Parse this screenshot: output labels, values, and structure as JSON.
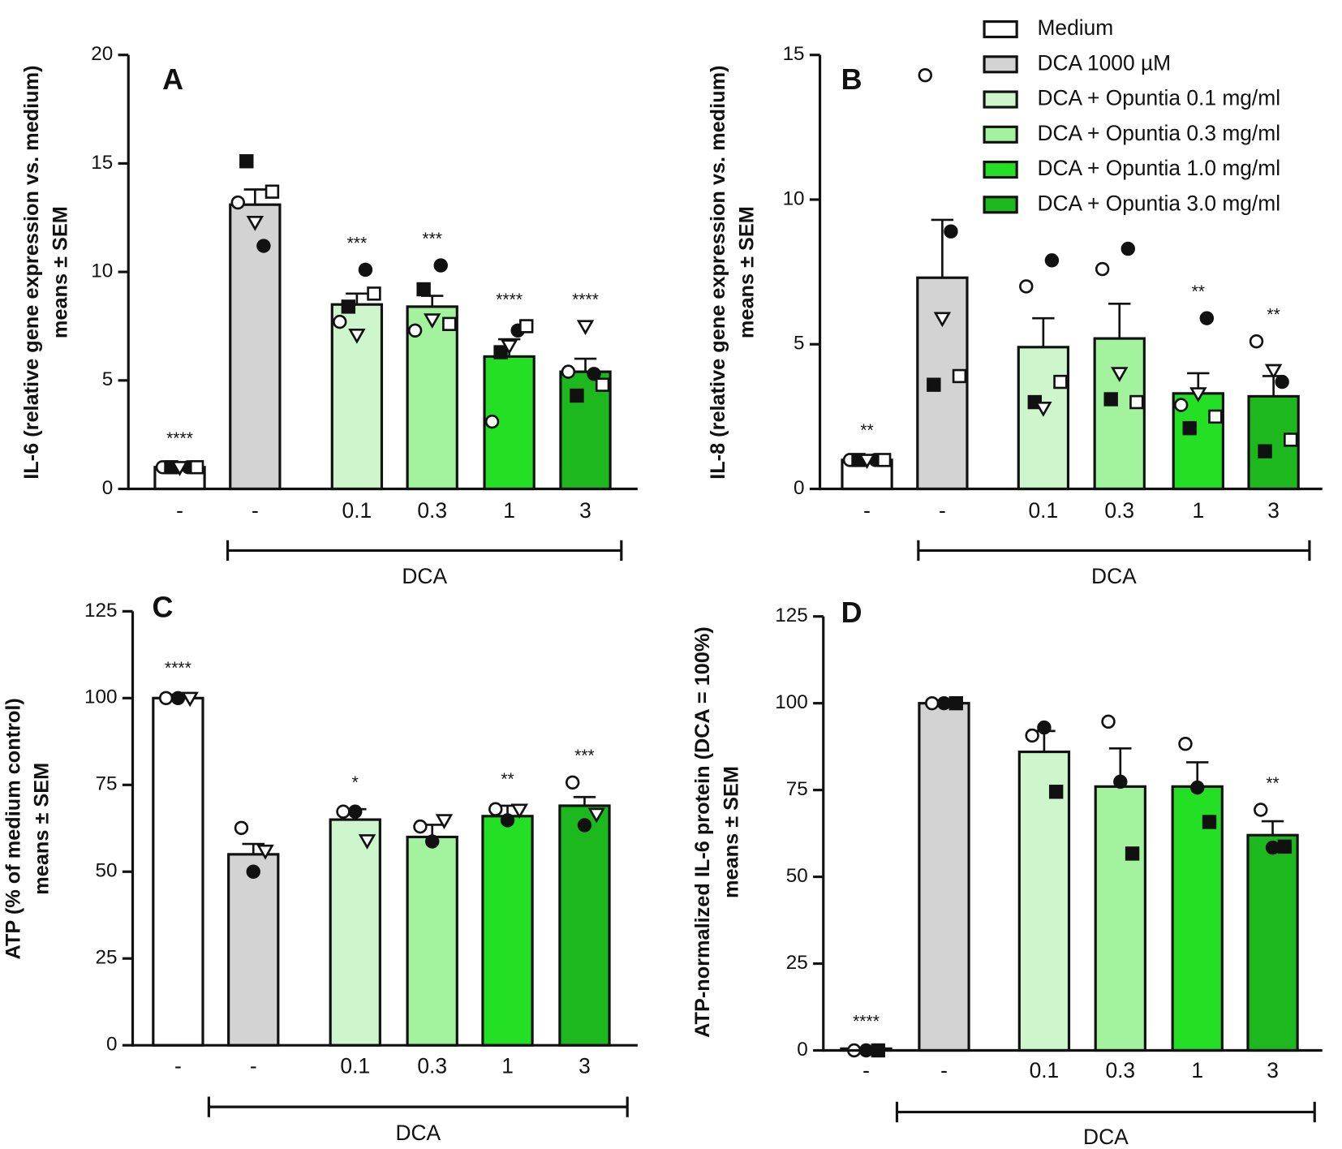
{
  "legend": [
    {
      "name": "Medium",
      "color": "#ffffff"
    },
    {
      "name": "DCA 1000 µM",
      "color": "#d3d3d3"
    },
    {
      "name": "DCA + Opuntia 0.1 mg/ml",
      "color": "#cdf6cc"
    },
    {
      "name": "DCA + Opuntia 0.3 mg/ml",
      "color": "#a2f29e"
    },
    {
      "name": "DCA + Opuntia 1.0 mg/ml",
      "color": "#24e024"
    },
    {
      "name": "DCA + Opuntia 3.0 mg/ml",
      "color": "#1db81d"
    }
  ],
  "chart_data": [
    {
      "type": "bar",
      "panel": "A",
      "ylabel": [
        "IL-6 (relative gene expression vs. medium)",
        "means ± SEM"
      ],
      "categories": [
        "-",
        "-",
        "0.1",
        "0.3",
        "1",
        "3"
      ],
      "group_label": "DCA",
      "values": [
        1.0,
        13.1,
        8.5,
        8.4,
        6.1,
        5.4
      ],
      "errors": [
        0.1,
        0.7,
        0.5,
        0.5,
        0.8,
        0.6
      ],
      "point_markers": [
        "circle-open",
        "circle-filled",
        "square-filled",
        "square-open",
        "triangle-open"
      ],
      "points": [
        [
          1.0,
          1.0,
          1.0,
          1.0,
          1.0
        ],
        [
          13.2,
          11.2,
          15.1,
          13.7,
          12.3
        ],
        [
          7.7,
          10.1,
          8.4,
          9.0,
          7.1
        ],
        [
          7.3,
          10.3,
          9.2,
          7.6,
          7.8
        ],
        [
          3.1,
          7.3,
          6.3,
          7.5,
          6.6
        ],
        [
          5.4,
          5.3,
          4.3,
          4.8,
          7.5
        ]
      ],
      "significance": [
        "****",
        null,
        "***",
        "***",
        "****",
        "****"
      ],
      "ylim": [
        0,
        20
      ],
      "yticks": [
        0,
        5,
        10,
        15,
        20
      ]
    },
    {
      "type": "bar",
      "panel": "B",
      "ylabel": [
        "IL-8 (relative gene expression vs. medium)",
        "means ± SEM"
      ],
      "categories": [
        "-",
        "-",
        "0.1",
        "0.3",
        "1",
        "3"
      ],
      "group_label": "DCA",
      "values": [
        1.0,
        7.3,
        4.9,
        5.2,
        3.3,
        3.2
      ],
      "errors": [
        0.1,
        2.0,
        1.0,
        1.2,
        0.7,
        0.7
      ],
      "point_markers": [
        "circle-open",
        "circle-filled",
        "square-filled",
        "square-open",
        "triangle-open"
      ],
      "points": [
        [
          1.0,
          1.0,
          1.0,
          1.0,
          1.0
        ],
        [
          14.3,
          8.9,
          3.6,
          3.9,
          5.9
        ],
        [
          7.0,
          7.9,
          3.0,
          3.7,
          2.8
        ],
        [
          7.6,
          8.3,
          3.1,
          3.0,
          4.0
        ],
        [
          2.9,
          5.9,
          2.1,
          2.5,
          3.3
        ],
        [
          5.1,
          3.7,
          1.3,
          1.7,
          4.1
        ]
      ],
      "significance": [
        "**",
        null,
        null,
        null,
        "**",
        "**"
      ],
      "ylim": [
        0,
        15
      ],
      "yticks": [
        0,
        5,
        10,
        15
      ]
    },
    {
      "type": "bar",
      "panel": "C",
      "ylabel": [
        "ATP (% of medium control)",
        "means ± SEM"
      ],
      "categories": [
        "-",
        "-",
        "0.1",
        "0.3",
        "1",
        "3"
      ],
      "group_label": "DCA",
      "values": [
        100,
        55,
        65,
        60,
        66,
        69
      ],
      "errors": [
        1,
        3,
        3,
        3.5,
        3,
        2.5
      ],
      "point_markers": [
        "circle-open",
        "circle-filled",
        "triangle-open"
      ],
      "points": [
        [
          100,
          100,
          100
        ],
        [
          62.6,
          50,
          56
        ],
        [
          67.3,
          67.3,
          59
        ],
        [
          63,
          58.7,
          64.8
        ],
        [
          68,
          64.8,
          67.8
        ],
        [
          75.7,
          63.4,
          66.6
        ]
      ],
      "significance": [
        "****",
        null,
        "*",
        null,
        "**",
        "***"
      ],
      "ylim": [
        0,
        125
      ],
      "yticks": [
        0,
        25,
        50,
        75,
        100,
        125
      ]
    },
    {
      "type": "bar",
      "panel": "D",
      "ylabel": [
        "ATP-normalized IL-6 protein  (DCA = 100%)",
        "means ± SEM"
      ],
      "categories": [
        "-",
        "-",
        "0.1",
        "0.3",
        "1",
        "3"
      ],
      "group_label": "DCA",
      "values": [
        0.5,
        100,
        86,
        76,
        76,
        62
      ],
      "errors": [
        0.2,
        0,
        6,
        11,
        7,
        4
      ],
      "point_markers": [
        "circle-open",
        "circle-filled",
        "square-filled"
      ],
      "points": [
        [
          0,
          0,
          0
        ],
        [
          100,
          100,
          100
        ],
        [
          90.7,
          93,
          74.5
        ],
        [
          94.7,
          77.4,
          56.7
        ],
        [
          88.3,
          75.7,
          65.8
        ],
        [
          69.3,
          58.4,
          58.7
        ]
      ],
      "significance": [
        "****",
        null,
        null,
        null,
        null,
        "**"
      ],
      "ylim": [
        0,
        125
      ],
      "yticks": [
        0,
        25,
        50,
        75,
        100,
        125
      ]
    }
  ]
}
